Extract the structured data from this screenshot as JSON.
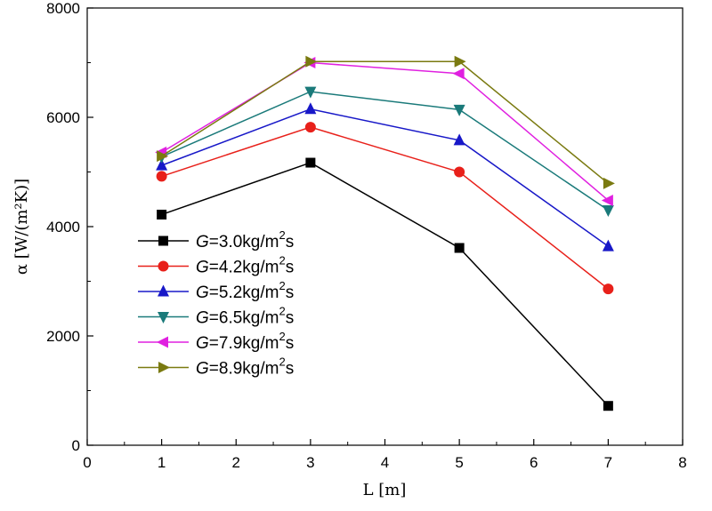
{
  "chart_data": {
    "type": "line",
    "title": "",
    "xlabel": "L [m]",
    "ylabel": "α [W/(m²K)]",
    "xlim": [
      0,
      8
    ],
    "ylim": [
      0,
      8000
    ],
    "xticks": [
      0,
      1,
      2,
      3,
      4,
      5,
      6,
      7,
      8
    ],
    "yticks": [
      0,
      2000,
      4000,
      6000,
      8000
    ],
    "x": [
      1,
      3,
      5,
      7
    ],
    "grid": false,
    "legend_position": "left",
    "series": [
      {
        "name_prefix": "G",
        "name_rest": "=3.0kg/m",
        "name_sup": "2",
        "name_suffix": "s",
        "color": "#000000",
        "marker": "square",
        "values": [
          4220,
          5170,
          3610,
          720
        ]
      },
      {
        "name_prefix": "G",
        "name_rest": "=4.2kg/m",
        "name_sup": "2",
        "name_suffix": "s",
        "color": "#e8201a",
        "marker": "circle",
        "values": [
          4920,
          5820,
          5000,
          2860
        ]
      },
      {
        "name_prefix": "G",
        "name_rest": "=5.2kg/m",
        "name_sup": "2",
        "name_suffix": "s",
        "color": "#1818c8",
        "marker": "triangle-up",
        "values": [
          5120,
          6150,
          5580,
          3640
        ]
      },
      {
        "name_prefix": "G",
        "name_rest": "=6.5kg/m",
        "name_sup": "2",
        "name_suffix": "s",
        "color": "#1a7a7a",
        "marker": "triangle-down",
        "values": [
          5280,
          6470,
          6140,
          4300
        ]
      },
      {
        "name_prefix": "G",
        "name_rest": "=7.9kg/m",
        "name_sup": "2",
        "name_suffix": "s",
        "color": "#e020e0",
        "marker": "triangle-left",
        "values": [
          5360,
          7000,
          6800,
          4480
        ]
      },
      {
        "name_prefix": "G",
        "name_rest": "=8.9kg/m",
        "name_sup": "2",
        "name_suffix": "s",
        "color": "#7a7a10",
        "marker": "triangle-right",
        "values": [
          5290,
          7020,
          7020,
          4790
        ]
      }
    ]
  }
}
